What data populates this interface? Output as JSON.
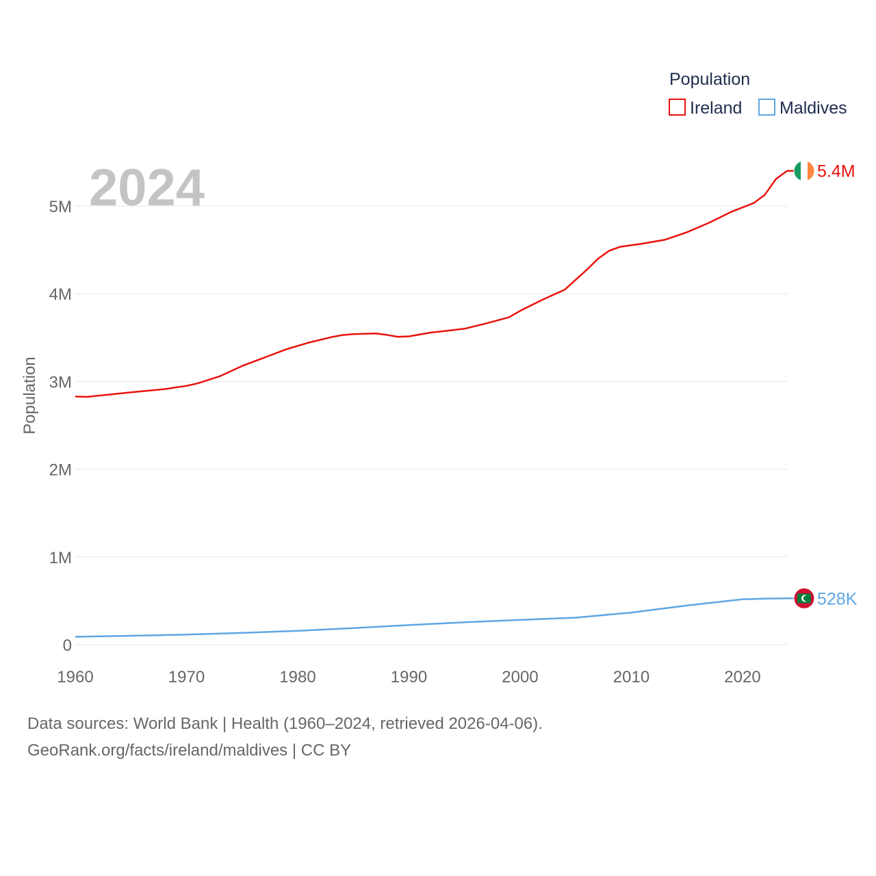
{
  "chart_data": {
    "type": "line",
    "year_label": "2024",
    "ylabel": "Population",
    "xlim": [
      1960,
      2024
    ],
    "ylim": [
      0,
      5000000
    ],
    "xticks": [
      1960,
      1970,
      1980,
      1990,
      2000,
      2010,
      2020
    ],
    "yticks": [
      {
        "value": 0,
        "label": "0"
      },
      {
        "value": 1000000,
        "label": "1M"
      },
      {
        "value": 2000000,
        "label": "2M"
      },
      {
        "value": 3000000,
        "label": "3M"
      },
      {
        "value": 4000000,
        "label": "4M"
      },
      {
        "value": 5000000,
        "label": "5M"
      }
    ],
    "legend": {
      "title": "Population",
      "position": "top-right"
    },
    "series": [
      {
        "name": "Ireland",
        "color": "#e8120c",
        "end_label": "5.4M",
        "flag": "ireland-flag",
        "points": [
          [
            1960,
            2828600
          ],
          [
            1961,
            2824400
          ],
          [
            1963,
            2850000
          ],
          [
            1965,
            2876000
          ],
          [
            1968,
            2913000
          ],
          [
            1970,
            2950100
          ],
          [
            1971,
            2978000
          ],
          [
            1973,
            3060000
          ],
          [
            1975,
            3177000
          ],
          [
            1977,
            3272000
          ],
          [
            1979,
            3368000
          ],
          [
            1981,
            3443400
          ],
          [
            1983,
            3505000
          ],
          [
            1984,
            3529000
          ],
          [
            1985,
            3540000
          ],
          [
            1987,
            3546500
          ],
          [
            1988,
            3531000
          ],
          [
            1989,
            3509500
          ],
          [
            1990,
            3513970
          ],
          [
            1992,
            3558000
          ],
          [
            1994,
            3586000
          ],
          [
            1995,
            3601300
          ],
          [
            1997,
            3664000
          ],
          [
            1999,
            3732000
          ],
          [
            2000,
            3805200
          ],
          [
            2002,
            3931000
          ],
          [
            2004,
            4045000
          ],
          [
            2005,
            4159900
          ],
          [
            2006,
            4273600
          ],
          [
            2007,
            4398900
          ],
          [
            2008,
            4489500
          ],
          [
            2009,
            4535400
          ],
          [
            2011,
            4570900
          ],
          [
            2013,
            4614300
          ],
          [
            2015,
            4701300
          ],
          [
            2017,
            4810000
          ],
          [
            2019,
            4934300
          ],
          [
            2021,
            5033200
          ],
          [
            2022,
            5127200
          ],
          [
            2023,
            5307600
          ],
          [
            2024,
            5400000
          ]
        ]
      },
      {
        "name": "Maldives",
        "color": "#5ea6e3",
        "end_label": "528K",
        "flag": "maldives-flag",
        "points": [
          [
            1960,
            89900
          ],
          [
            1965,
            101400
          ],
          [
            1970,
            114500
          ],
          [
            1975,
            135000
          ],
          [
            1980,
            157400
          ],
          [
            1985,
            189000
          ],
          [
            1990,
            222900
          ],
          [
            1995,
            256200
          ],
          [
            2000,
            282500
          ],
          [
            2005,
            308000
          ],
          [
            2010,
            365700
          ],
          [
            2015,
            446700
          ],
          [
            2020,
            517900
          ],
          [
            2021,
            521000
          ],
          [
            2022,
            523800
          ],
          [
            2024,
            528000
          ]
        ]
      }
    ]
  },
  "footer": {
    "line1": "Data sources: World Bank | Health (1960–2024, retrieved 2026-04-06).",
    "line2": "GeoRank.org/facts/ireland/maldives | CC BY"
  }
}
